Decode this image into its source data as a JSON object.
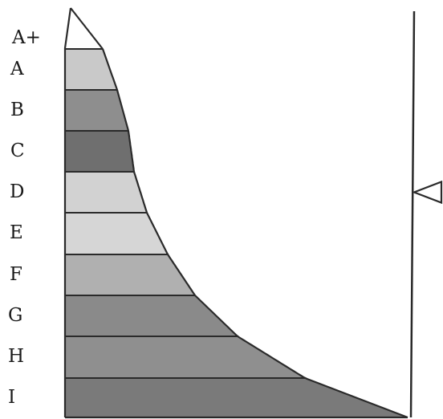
{
  "scale": {
    "grades": [
      {
        "label": "A+",
        "shade": "#ffffff"
      },
      {
        "label": "A",
        "shade": "#c9c9c9"
      },
      {
        "label": "B",
        "shade": "#8e8e8e"
      },
      {
        "label": "C",
        "shade": "#6f6f6f"
      },
      {
        "label": "D",
        "shade": "#d2d2d2"
      },
      {
        "label": "E",
        "shade": "#d6d6d6"
      },
      {
        "label": "F",
        "shade": "#b0b0b0"
      },
      {
        "label": "G",
        "shade": "#8a8a8a"
      },
      {
        "label": "H",
        "shade": "#8f8f8f"
      },
      {
        "label": "I",
        "shade": "#7a7a7a"
      }
    ],
    "indicator": {
      "grade": "D",
      "shape": "left-pointing-triangle"
    },
    "colors": {
      "outline": "#2a2a2a",
      "background": "#ffffff"
    }
  }
}
